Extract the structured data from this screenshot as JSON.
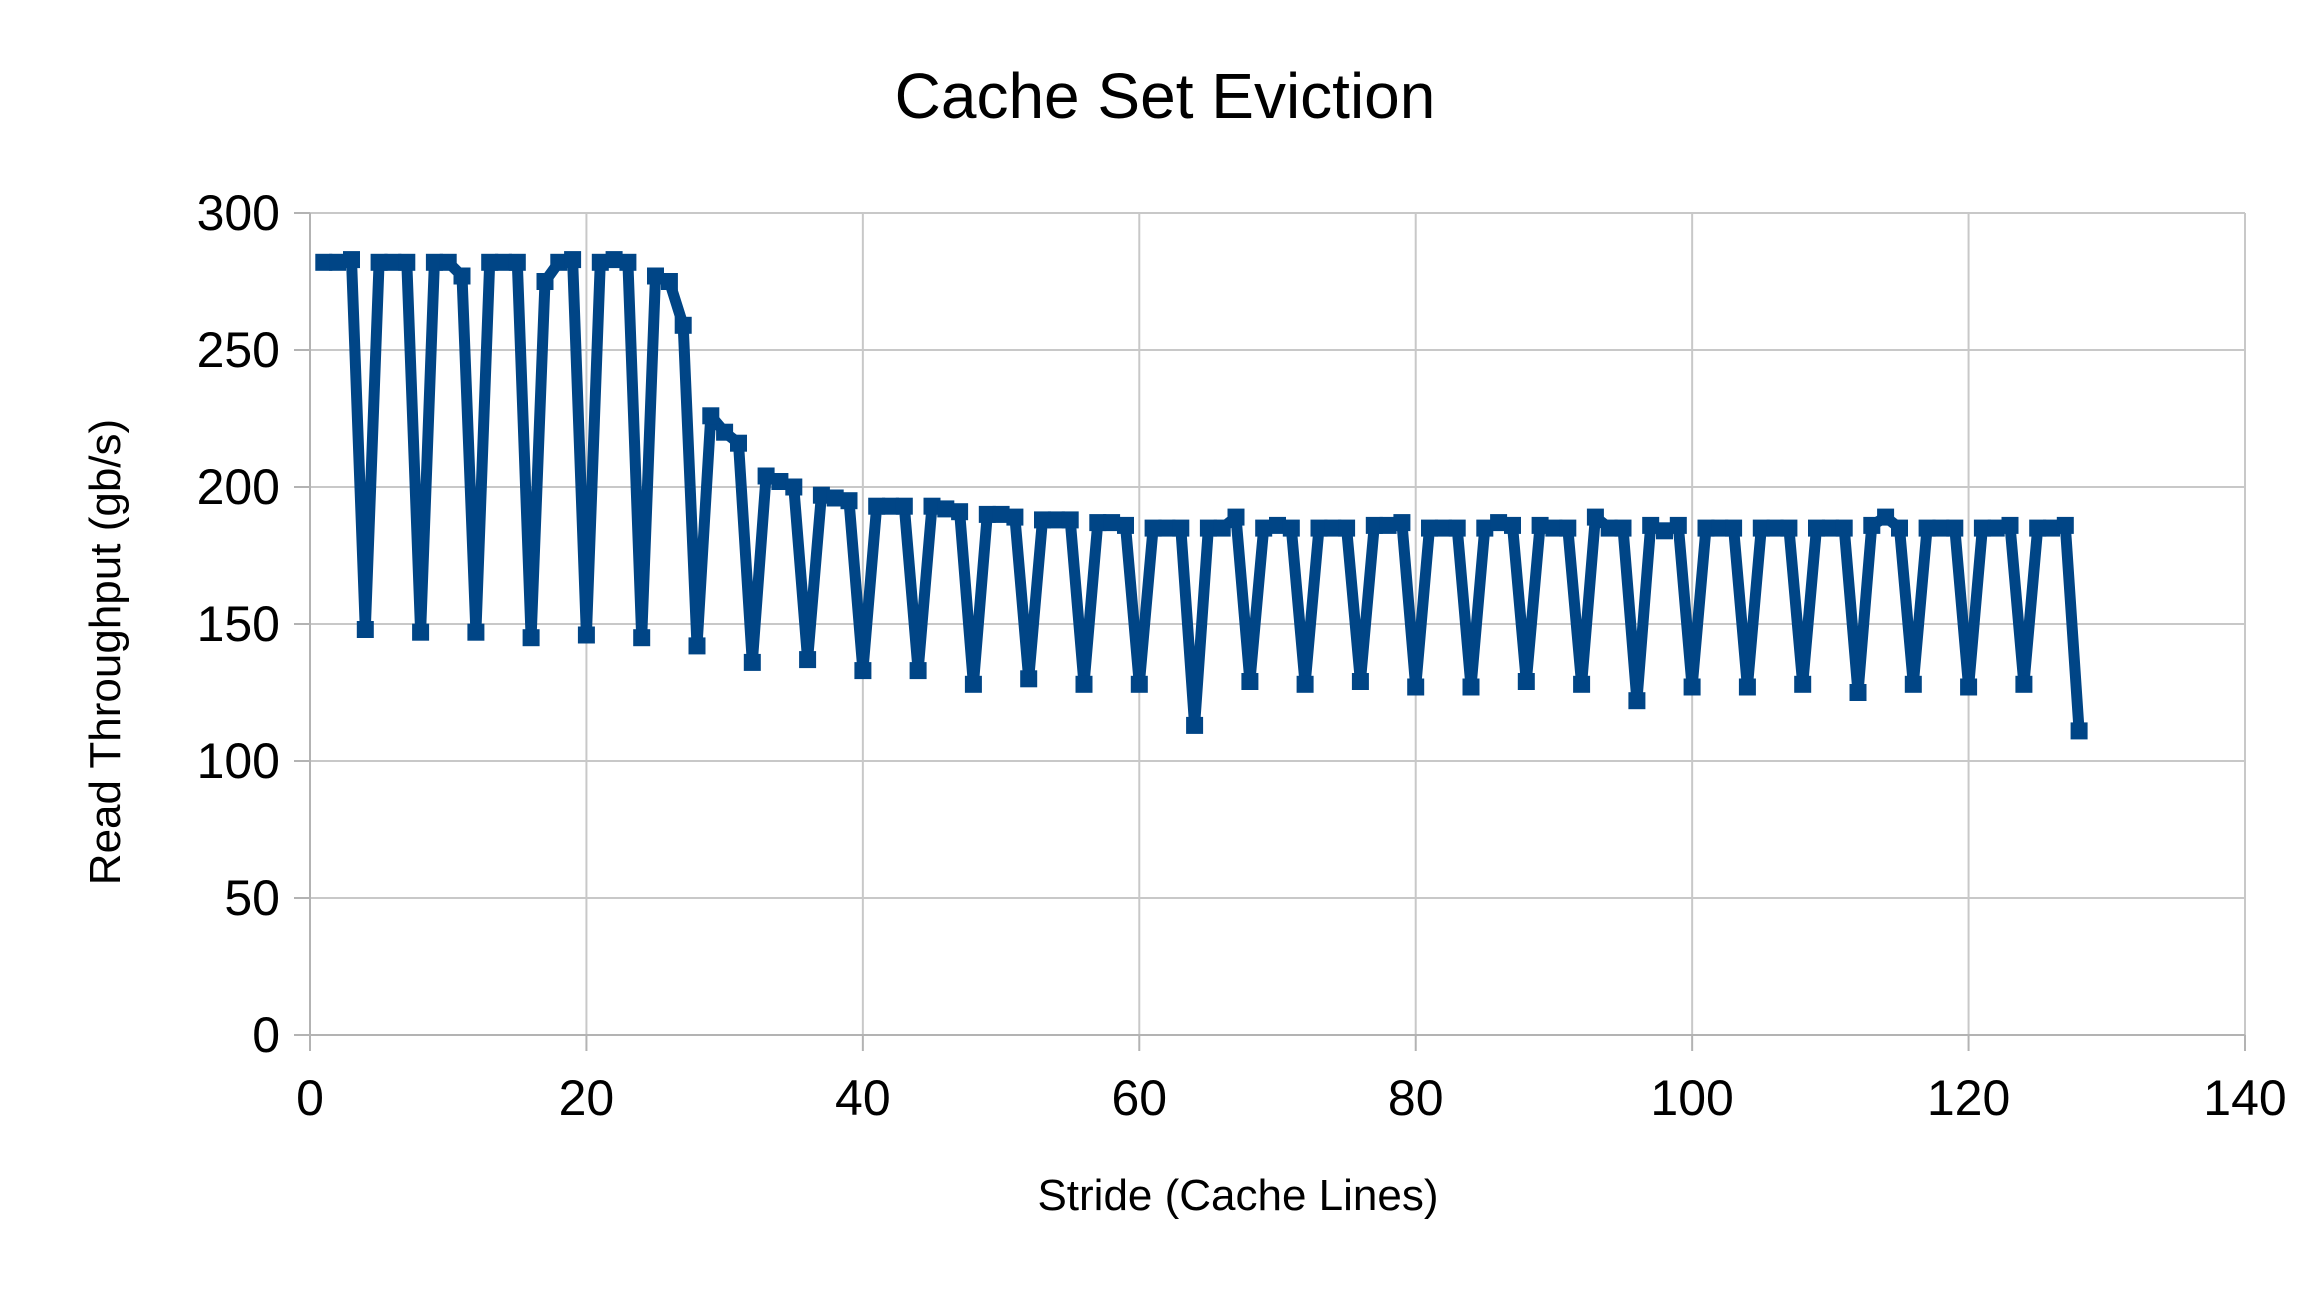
{
  "chart_data": {
    "type": "line",
    "title": "Cache Set Eviction",
    "xlabel": "Stride (Cache Lines)",
    "ylabel": "Read Throughput (gb/s)",
    "xlim": [
      0,
      140
    ],
    "ylim": [
      0,
      300
    ],
    "xticks": [
      "0",
      "20",
      "40",
      "60",
      "80",
      "100",
      "120",
      "140"
    ],
    "yticks": [
      "0",
      "50",
      "100",
      "150",
      "200",
      "250",
      "300"
    ],
    "grid": true,
    "legend": "none",
    "colors": {
      "series": "#004586",
      "grid": "#c8c8c8",
      "axis": "#b3b3b3"
    },
    "series": [
      {
        "marker": "square",
        "points": [
          [
            1,
            282
          ],
          [
            2,
            282
          ],
          [
            3,
            283
          ],
          [
            4,
            148
          ],
          [
            5,
            282
          ],
          [
            6,
            282
          ],
          [
            7,
            282
          ],
          [
            8,
            147
          ],
          [
            9,
            282
          ],
          [
            10,
            282
          ],
          [
            11,
            277
          ],
          [
            12,
            147
          ],
          [
            13,
            282
          ],
          [
            14,
            282
          ],
          [
            15,
            282
          ],
          [
            16,
            145
          ],
          [
            17,
            275
          ],
          [
            18,
            282
          ],
          [
            19,
            283
          ],
          [
            20,
            146
          ],
          [
            21,
            282
          ],
          [
            22,
            283
          ],
          [
            23,
            282
          ],
          [
            24,
            145
          ],
          [
            25,
            277
          ],
          [
            26,
            275
          ],
          [
            27,
            259
          ],
          [
            28,
            142
          ],
          [
            29,
            226
          ],
          [
            30,
            220
          ],
          [
            31,
            216
          ],
          [
            32,
            136
          ],
          [
            33,
            204
          ],
          [
            34,
            202
          ],
          [
            35,
            200
          ],
          [
            36,
            137
          ],
          [
            37,
            197
          ],
          [
            38,
            196
          ],
          [
            39,
            195
          ],
          [
            40,
            133
          ],
          [
            41,
            193
          ],
          [
            42,
            193
          ],
          [
            43,
            193
          ],
          [
            44,
            133
          ],
          [
            45,
            193
          ],
          [
            46,
            192
          ],
          [
            47,
            191
          ],
          [
            48,
            128
          ],
          [
            49,
            190
          ],
          [
            50,
            190
          ],
          [
            51,
            189
          ],
          [
            52,
            130
          ],
          [
            53,
            188
          ],
          [
            54,
            188
          ],
          [
            55,
            188
          ],
          [
            56,
            128
          ],
          [
            57,
            187
          ],
          [
            58,
            187
          ],
          [
            59,
            186
          ],
          [
            60,
            128
          ],
          [
            61,
            185
          ],
          [
            62,
            185
          ],
          [
            63,
            185
          ],
          [
            64,
            113
          ],
          [
            65,
            185
          ],
          [
            66,
            185
          ],
          [
            67,
            189
          ],
          [
            68,
            129
          ],
          [
            69,
            185
          ],
          [
            70,
            186
          ],
          [
            71,
            185
          ],
          [
            72,
            128
          ],
          [
            73,
            185
          ],
          [
            74,
            185
          ],
          [
            75,
            185
          ],
          [
            76,
            129
          ],
          [
            77,
            186
          ],
          [
            78,
            186
          ],
          [
            79,
            187
          ],
          [
            80,
            127
          ],
          [
            81,
            185
          ],
          [
            82,
            185
          ],
          [
            83,
            185
          ],
          [
            84,
            127
          ],
          [
            85,
            185
          ],
          [
            86,
            187
          ],
          [
            87,
            186
          ],
          [
            88,
            129
          ],
          [
            89,
            186
          ],
          [
            90,
            185
          ],
          [
            91,
            185
          ],
          [
            92,
            128
          ],
          [
            93,
            189
          ],
          [
            94,
            185
          ],
          [
            95,
            185
          ],
          [
            96,
            122
          ],
          [
            97,
            186
          ],
          [
            98,
            184
          ],
          [
            99,
            186
          ],
          [
            100,
            127
          ],
          [
            101,
            185
          ],
          [
            102,
            185
          ],
          [
            103,
            185
          ],
          [
            104,
            127
          ],
          [
            105,
            185
          ],
          [
            106,
            185
          ],
          [
            107,
            185
          ],
          [
            108,
            128
          ],
          [
            109,
            185
          ],
          [
            110,
            185
          ],
          [
            111,
            185
          ],
          [
            112,
            125
          ],
          [
            113,
            186
          ],
          [
            114,
            189
          ],
          [
            115,
            185
          ],
          [
            116,
            128
          ],
          [
            117,
            185
          ],
          [
            118,
            185
          ],
          [
            119,
            185
          ],
          [
            120,
            127
          ],
          [
            121,
            185
          ],
          [
            122,
            185
          ],
          [
            123,
            186
          ],
          [
            124,
            128
          ],
          [
            125,
            185
          ],
          [
            126,
            185
          ],
          [
            127,
            186
          ],
          [
            128,
            111
          ]
        ]
      }
    ]
  }
}
